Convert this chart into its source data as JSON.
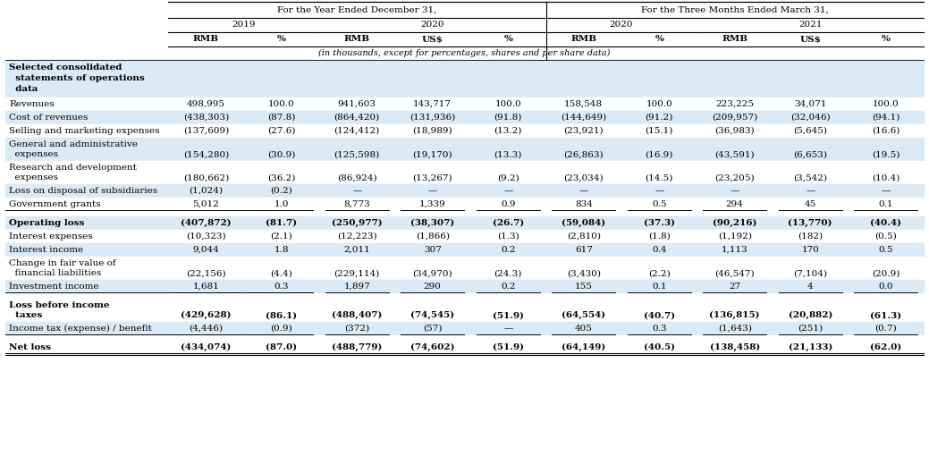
{
  "title_row1": "For the Year Ended December 31,",
  "title_row2": "For the Three Months Ended March 31,",
  "sub_note": "(in thousands, except for percentages, shares and per share data)",
  "bg_light": "#daeaf6",
  "bg_white": "#ffffff",
  "rows": [
    {
      "label": [
        "Selected consolidated",
        "  statements of operations",
        "  data"
      ],
      "values": [
        "",
        "",
        "",
        "",
        "",
        "",
        "",
        "",
        "",
        ""
      ],
      "bold": false,
      "label_bold": true,
      "bg": "light",
      "top_border": false,
      "bottom_border": false,
      "space_before": false
    },
    {
      "label": [
        "Revenues"
      ],
      "values": [
        "498,995",
        "100.0",
        "941,603",
        "143,717",
        "100.0",
        "158,548",
        "100.0",
        "223,225",
        "34,071",
        "100.0"
      ],
      "bold": false,
      "label_bold": false,
      "bg": "white",
      "top_border": false,
      "bottom_border": false,
      "space_before": false
    },
    {
      "label": [
        "Cost of revenues"
      ],
      "values": [
        "(438,303)",
        "(87.8)",
        "(864,420)",
        "(131,936)",
        "(91.8)",
        "(144,649)",
        "(91.2)",
        "(209,957)",
        "(32,046)",
        "(94.1)"
      ],
      "bold": false,
      "label_bold": false,
      "bg": "light",
      "top_border": false,
      "bottom_border": false,
      "space_before": false
    },
    {
      "label": [
        "Selling and marketing expenses"
      ],
      "values": [
        "(137,609)",
        "(27.6)",
        "(124,412)",
        "(18,989)",
        "(13.2)",
        "(23,921)",
        "(15.1)",
        "(36,983)",
        "(5,645)",
        "(16.6)"
      ],
      "bold": false,
      "label_bold": false,
      "bg": "white",
      "top_border": false,
      "bottom_border": false,
      "space_before": false
    },
    {
      "label": [
        "General and administrative",
        "  expenses"
      ],
      "values": [
        "(154,280)",
        "(30.9)",
        "(125,598)",
        "(19,170)",
        "(13.3)",
        "(26,863)",
        "(16.9)",
        "(43,591)",
        "(6,653)",
        "(19.5)"
      ],
      "bold": false,
      "label_bold": false,
      "bg": "light",
      "top_border": false,
      "bottom_border": false,
      "space_before": false
    },
    {
      "label": [
        "Research and development",
        "  expenses"
      ],
      "values": [
        "(180,662)",
        "(36.2)",
        "(86,924)",
        "(13,267)",
        "(9.2)",
        "(23,034)",
        "(14.5)",
        "(23,205)",
        "(3,542)",
        "(10.4)"
      ],
      "bold": false,
      "label_bold": false,
      "bg": "white",
      "top_border": false,
      "bottom_border": false,
      "space_before": false
    },
    {
      "label": [
        "Loss on disposal of subsidiaries"
      ],
      "values": [
        "(1,024)",
        "(0.2)",
        "—",
        "—",
        "—",
        "—",
        "—",
        "—",
        "—",
        "—"
      ],
      "bold": false,
      "label_bold": false,
      "bg": "light",
      "top_border": false,
      "bottom_border": false,
      "space_before": false
    },
    {
      "label": [
        "Government grants"
      ],
      "values": [
        "5,012",
        "1.0",
        "8,773",
        "1,339",
        "0.9",
        "834",
        "0.5",
        "294",
        "45",
        "0.1"
      ],
      "bold": false,
      "label_bold": false,
      "bg": "white",
      "top_border": false,
      "bottom_border": true,
      "space_before": false
    },
    {
      "label": [
        "Operating loss"
      ],
      "values": [
        "(407,872)",
        "(81.7)",
        "(250,977)",
        "(38,307)",
        "(26.7)",
        "(59,084)",
        "(37.3)",
        "(90,216)",
        "(13,770)",
        "(40.4)"
      ],
      "bold": true,
      "label_bold": true,
      "bg": "light",
      "top_border": false,
      "bottom_border": false,
      "space_before": false
    },
    {
      "label": [
        "Interest expenses"
      ],
      "values": [
        "(10,323)",
        "(2.1)",
        "(12,223)",
        "(1,866)",
        "(1.3)",
        "(2,810)",
        "(1.8)",
        "(1,192)",
        "(182)",
        "(0.5)"
      ],
      "bold": false,
      "label_bold": false,
      "bg": "white",
      "top_border": false,
      "bottom_border": false,
      "space_before": false
    },
    {
      "label": [
        "Interest income"
      ],
      "values": [
        "9,044",
        "1.8",
        "2,011",
        "307",
        "0.2",
        "617",
        "0.4",
        "1,113",
        "170",
        "0.5"
      ],
      "bold": false,
      "label_bold": false,
      "bg": "light",
      "top_border": false,
      "bottom_border": false,
      "space_before": false
    },
    {
      "label": [
        "Change in fair value of",
        "  financial liabilities"
      ],
      "values": [
        "(22,156)",
        "(4.4)",
        "(229,114)",
        "(34,970)",
        "(24.3)",
        "(3,430)",
        "(2.2)",
        "(46,547)",
        "(7,104)",
        "(20.9)"
      ],
      "bold": false,
      "label_bold": false,
      "bg": "white",
      "top_border": false,
      "bottom_border": false,
      "space_before": false
    },
    {
      "label": [
        "Investment income"
      ],
      "values": [
        "1,681",
        "0.3",
        "1,897",
        "290",
        "0.2",
        "155",
        "0.1",
        "27",
        "4",
        "0.0"
      ],
      "bold": false,
      "label_bold": false,
      "bg": "light",
      "top_border": false,
      "bottom_border": true,
      "space_before": false
    },
    {
      "label": [
        "Loss before income",
        "  taxes"
      ],
      "values": [
        "(429,628)",
        "(86.1)",
        "(488,407)",
        "(74,545)",
        "(51.9)",
        "(64,554)",
        "(40.7)",
        "(136,815)",
        "(20,882)",
        "(61.3)"
      ],
      "bold": true,
      "label_bold": true,
      "bg": "white",
      "top_border": false,
      "bottom_border": false,
      "space_before": false
    },
    {
      "label": [
        "Income tax (expense) / benefit"
      ],
      "values": [
        "(4,446)",
        "(0.9)",
        "(372)",
        "(57)",
        "—",
        "405",
        "0.3",
        "(1,643)",
        "(251)",
        "(0.7)"
      ],
      "bold": false,
      "label_bold": false,
      "bg": "light",
      "top_border": false,
      "bottom_border": true,
      "space_before": false
    },
    {
      "label": [
        "Net loss"
      ],
      "values": [
        "(434,074)",
        "(87.0)",
        "(488,779)",
        "(74,602)",
        "(51.9)",
        "(64,149)",
        "(40.5)",
        "(138,458)",
        "(21,133)",
        "(62.0)"
      ],
      "bold": true,
      "label_bold": true,
      "bg": "white",
      "top_border": false,
      "bottom_border": false,
      "space_before": false
    }
  ]
}
